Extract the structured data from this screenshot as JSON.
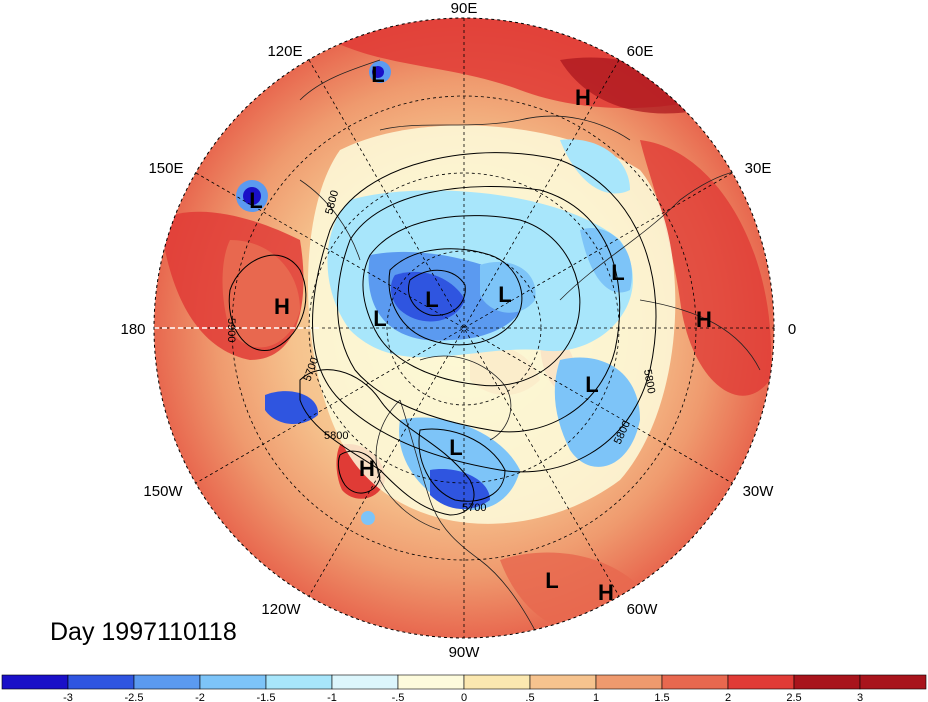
{
  "title": "Day 1997110118",
  "longitude_labels": [
    {
      "text": "90E",
      "lon": 90
    },
    {
      "text": "60E",
      "lon": 60
    },
    {
      "text": "30E",
      "lon": 30
    },
    {
      "text": "0",
      "lon": 0
    },
    {
      "text": "30W",
      "lon": -30
    },
    {
      "text": "60W",
      "lon": -60
    },
    {
      "text": "90W",
      "lon": -90
    },
    {
      "text": "120W",
      "lon": -120
    },
    {
      "text": "150W",
      "lon": -150
    },
    {
      "text": "180",
      "lon": 180
    },
    {
      "text": "150E",
      "lon": 150
    },
    {
      "text": "120E",
      "lon": 120
    }
  ],
  "pressure_centers": [
    {
      "type": "L",
      "label": "L"
    },
    {
      "type": "H",
      "label": "H"
    },
    {
      "type": "L",
      "label": "L"
    },
    {
      "type": "H",
      "label": "H"
    },
    {
      "type": "L",
      "label": "L"
    },
    {
      "type": "L",
      "label": "L"
    },
    {
      "type": "L",
      "label": "L"
    },
    {
      "type": "L",
      "label": "L"
    },
    {
      "type": "H",
      "label": "H"
    },
    {
      "type": "L",
      "label": "L"
    },
    {
      "type": "L",
      "label": "L"
    },
    {
      "type": "H",
      "label": "H"
    },
    {
      "type": "L",
      "label": "L"
    },
    {
      "type": "H",
      "label": "H"
    }
  ],
  "contour_labels": [
    {
      "text": "5800"
    },
    {
      "text": "5900"
    },
    {
      "text": "5700"
    },
    {
      "text": "5800"
    },
    {
      "text": "5800"
    },
    {
      "text": "5800"
    },
    {
      "text": "5700"
    }
  ],
  "colorbar": {
    "tick_labels": [
      "-3",
      "-2.5",
      "-2",
      "-1.5",
      "-1",
      "-.5",
      "0",
      ".5",
      "1",
      "1.5",
      "2",
      "2.5",
      "3"
    ],
    "colors": [
      "#1a10c8",
      "#2f55e0",
      "#5b9af0",
      "#7dc4f8",
      "#a8e6fb",
      "#dcf6fc",
      "#fdfbdc",
      "#fbe8b0",
      "#f6c38e",
      "#ef9a6e",
      "#e8684f",
      "#e03b36",
      "#a8141c"
    ]
  }
}
